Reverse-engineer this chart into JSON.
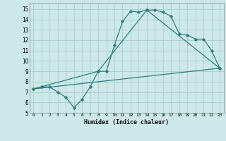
{
  "xlabel": "Humidex (Indice chaleur)",
  "background_color": "#cce8e8",
  "grid_color": "#aacccc",
  "line_color": "#2e7f7f",
  "xlim": [
    -0.5,
    23.5
  ],
  "ylim": [
    5,
    15.6
  ],
  "yticks": [
    5,
    6,
    7,
    8,
    9,
    10,
    11,
    12,
    13,
    14,
    15
  ],
  "xticks": [
    0,
    1,
    2,
    3,
    4,
    5,
    6,
    7,
    8,
    9,
    10,
    11,
    12,
    13,
    14,
    15,
    16,
    17,
    18,
    19,
    20,
    21,
    22,
    23
  ],
  "curve1_x": [
    0,
    1,
    2,
    3,
    4,
    5,
    6,
    7,
    8,
    9,
    10,
    11,
    12,
    13,
    14,
    15,
    16,
    17,
    18,
    19,
    20,
    21,
    22,
    23
  ],
  "curve1_y": [
    7.3,
    7.5,
    7.5,
    7.0,
    6.5,
    5.5,
    6.3,
    7.5,
    9.0,
    9.0,
    11.5,
    13.8,
    14.8,
    14.7,
    14.9,
    14.9,
    14.7,
    14.3,
    12.6,
    12.5,
    12.1,
    12.1,
    11.0,
    9.3
  ],
  "curve2_x": [
    0,
    8,
    14,
    23
  ],
  "curve2_y": [
    7.3,
    9.0,
    14.9,
    9.3
  ],
  "curve3_x": [
    0,
    23
  ],
  "curve3_y": [
    7.3,
    9.3
  ]
}
